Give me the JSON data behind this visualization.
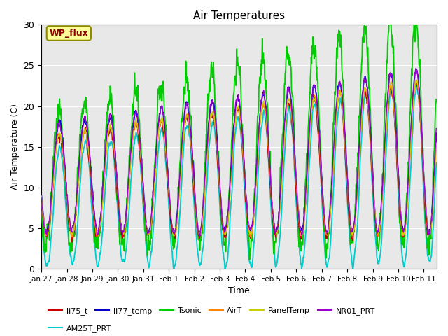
{
  "title": "Air Temperatures",
  "ylabel": "Air Temperature (C)",
  "xlabel": "Time",
  "ylim": [
    0,
    30
  ],
  "xlim_days": [
    0,
    15.5
  ],
  "xtick_labels": [
    "Jan 27",
    "Jan 28",
    "Jan 29",
    "Jan 30",
    "Jan 31",
    "Feb 1",
    "Feb 2",
    "Feb 3",
    "Feb 4",
    "Feb 5",
    "Feb 6",
    "Feb 7",
    "Feb 8",
    "Feb 9",
    "Feb 10",
    "Feb 11"
  ],
  "annotation_text": "WP_flux",
  "bg_color": "#e8e8e8",
  "series_order": [
    "AM25T_PRT",
    "Tsonic",
    "li75_t",
    "li77_temp",
    "AirT",
    "PanelTemp",
    "NR01_PRT"
  ],
  "series": {
    "li75_t": {
      "color": "#cc0000",
      "lw": 1.0,
      "zorder": 5
    },
    "li77_temp": {
      "color": "#0000cc",
      "lw": 1.2,
      "zorder": 6
    },
    "Tsonic": {
      "color": "#00cc00",
      "lw": 1.3,
      "zorder": 3
    },
    "AirT": {
      "color": "#ff8800",
      "lw": 1.0,
      "zorder": 7
    },
    "PanelTemp": {
      "color": "#cccc00",
      "lw": 1.0,
      "zorder": 7
    },
    "NR01_PRT": {
      "color": "#9900cc",
      "lw": 1.0,
      "zorder": 7
    },
    "AM25T_PRT": {
      "color": "#00cccc",
      "lw": 1.3,
      "zorder": 2
    }
  },
  "legend_row1": [
    "li75_t",
    "li77_temp",
    "Tsonic",
    "AirT",
    "PanelTemp",
    "NR01_PRT"
  ],
  "legend_row1_colors": [
    "#cc0000",
    "#0000cc",
    "#00cc00",
    "#ff8800",
    "#cccc00",
    "#9900cc"
  ],
  "legend_row2": [
    "AM25T_PRT"
  ],
  "legend_row2_colors": [
    "#00cccc"
  ]
}
